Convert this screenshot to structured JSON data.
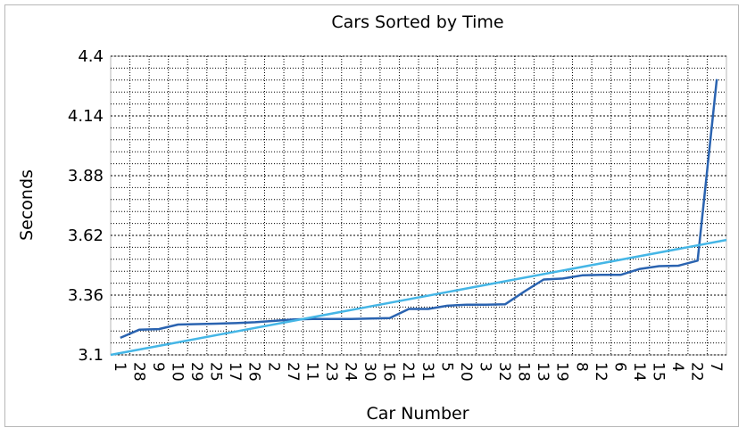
{
  "chart_data": {
    "type": "line",
    "title": "Cars Sorted by Time",
    "xlabel": "Car Number",
    "ylabel": "Seconds",
    "ylim": [
      3.1,
      4.4
    ],
    "yticks": [
      "3.1",
      "3.36",
      "3.62",
      "3.88",
      "4.14",
      "4.4"
    ],
    "grid": true,
    "categories": [
      "1",
      "28",
      "9",
      "10",
      "29",
      "25",
      "17",
      "26",
      "2",
      "27",
      "11",
      "23",
      "24",
      "30",
      "16",
      "21",
      "31",
      "5",
      "20",
      "3",
      "32",
      "18",
      "13",
      "19",
      "8",
      "12",
      "6",
      "14",
      "15",
      "4",
      "22",
      "7"
    ],
    "series": [
      {
        "color": "#2a63b0",
        "values": [
          3.174,
          3.21,
          3.212,
          3.232,
          3.234,
          3.236,
          3.238,
          3.242,
          3.248,
          3.254,
          3.256,
          3.256,
          3.256,
          3.258,
          3.26,
          3.3,
          3.3,
          3.314,
          3.318,
          3.318,
          3.32,
          3.376,
          3.428,
          3.432,
          3.446,
          3.448,
          3.448,
          3.474,
          3.486,
          3.488,
          3.51,
          4.3
        ]
      },
      {
        "color": "#45b6e6",
        "kind": "linear-trendline",
        "x_start": 0,
        "y_start": 3.1,
        "x_end": 32,
        "y_end": 3.6
      }
    ]
  }
}
